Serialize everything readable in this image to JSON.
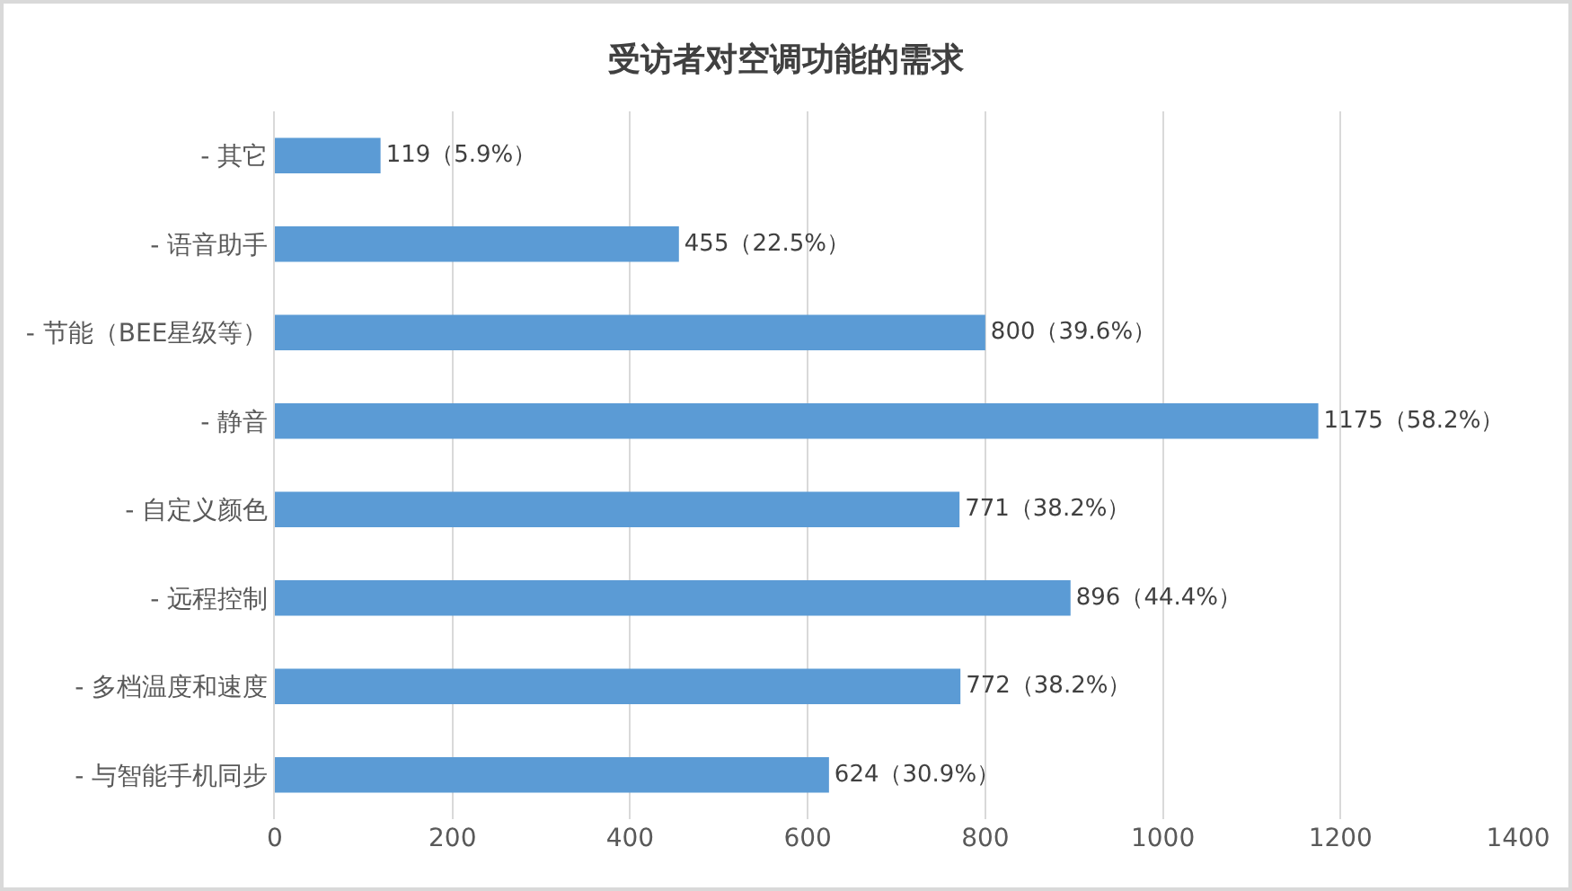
{
  "chart_data": {
    "type": "bar",
    "orientation": "horizontal",
    "title": "受访者对空调功能的需求",
    "categories": [
      "- 其它",
      "- 语音助手",
      "- 节能（BEE星级等）",
      "- 静音",
      "- 自定义颜色",
      "- 远程控制",
      "- 多档温度和速度",
      "- 与智能手机同步"
    ],
    "values": [
      119,
      455,
      800,
      1175,
      771,
      896,
      772,
      624
    ],
    "value_labels": [
      "119（5.9%）",
      "455（22.5%）",
      "800（39.6%）",
      "1175（58.2%）",
      "771（38.2%）",
      "896（44.4%）",
      "772（38.2%）",
      "624（30.9%）"
    ],
    "color": "#5b9bd5",
    "xlim": [
      0,
      1400
    ],
    "xticks": [
      0,
      200,
      400,
      600,
      800,
      1000,
      1200,
      1400
    ],
    "grid": "x"
  }
}
